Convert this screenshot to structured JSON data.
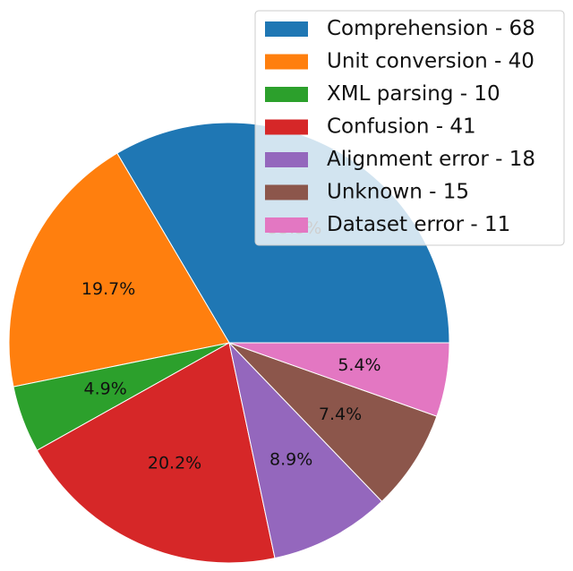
{
  "chart_data": {
    "type": "pie",
    "title": "",
    "slices": [
      {
        "label": "Comprehension - 68",
        "value": 68,
        "percent_label": "33.5%",
        "color": "#1f77b4"
      },
      {
        "label": "Unit conversion - 40",
        "value": 40,
        "percent_label": "19.7%",
        "color": "#ff7f0e"
      },
      {
        "label": "XML parsing - 10",
        "value": 10,
        "percent_label": "4.9%",
        "color": "#2ca02c"
      },
      {
        "label": "Confusion - 41",
        "value": 41,
        "percent_label": "20.2%",
        "color": "#d62728"
      },
      {
        "label": "Alignment error - 18",
        "value": 18,
        "percent_label": "8.9%",
        "color": "#9467bd"
      },
      {
        "label": "Unknown - 15",
        "value": 15,
        "percent_label": "7.4%",
        "color": "#8c564b"
      },
      {
        "label": "Dataset error - 11",
        "value": 11,
        "percent_label": "5.4%",
        "color": "#e377c2"
      }
    ],
    "start_angle_deg": 0,
    "direction": "counterclockwise",
    "legend_position": "top-right"
  }
}
